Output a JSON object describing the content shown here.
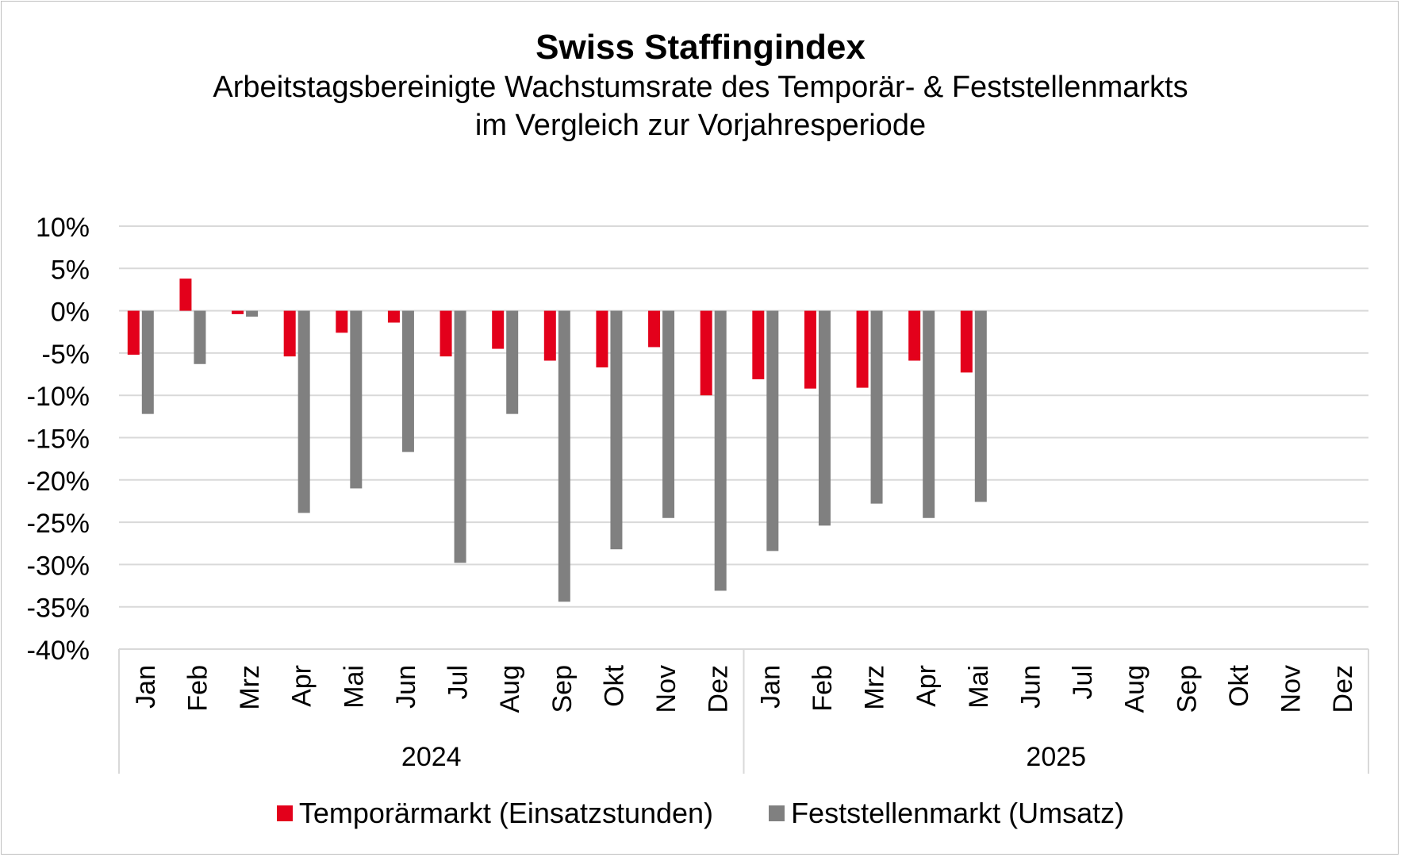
{
  "chart_data": {
    "type": "bar",
    "title": "Swiss Staffingindex",
    "subtitle_lines": [
      "Arbeitstagsbereinigte Wachstumsrate des Temporär- & Feststellenmarkts",
      "im Vergleich zur Vorjahresperiode"
    ],
    "ylim": [
      -40,
      10
    ],
    "yticks": [
      10,
      5,
      0,
      -5,
      -10,
      -15,
      -20,
      -25,
      -30,
      -35,
      -40
    ],
    "ytick_labels": [
      "10%",
      "5%",
      "0%",
      "-5%",
      "-10%",
      "-15%",
      "-20%",
      "-25%",
      "-30%",
      "-35%",
      "-40%"
    ],
    "grid": true,
    "legend_position": "bottom",
    "groups": [
      {
        "label": "2024",
        "categories": [
          "Jan",
          "Feb",
          "Mrz",
          "Apr",
          "Mai",
          "Jun",
          "Jul",
          "Aug",
          "Sep",
          "Okt",
          "Nov",
          "Dez"
        ]
      },
      {
        "label": "2025",
        "categories": [
          "Jan",
          "Feb",
          "Mrz",
          "Apr",
          "Mai",
          "Jun",
          "Jul",
          "Aug",
          "Sep",
          "Okt",
          "Nov",
          "Dez"
        ]
      }
    ],
    "series": [
      {
        "name": "Temporärmarkt (Einsatzstunden)",
        "color": "#e3001b",
        "values": [
          -5.2,
          3.8,
          -0.4,
          -5.4,
          -2.6,
          -1.4,
          -5.4,
          -4.5,
          -5.9,
          -6.7,
          -4.3,
          -10.0,
          -8.1,
          -9.2,
          -9.1,
          -5.9,
          -7.3,
          null,
          null,
          null,
          null,
          null,
          null,
          null
        ]
      },
      {
        "name": "Feststellenmarkt (Umsatz)",
        "color": "#808080",
        "values": [
          -12.2,
          -6.3,
          -0.7,
          -23.9,
          -21.0,
          -16.7,
          -29.8,
          -12.2,
          -34.4,
          -28.2,
          -24.5,
          -33.1,
          -28.4,
          -25.4,
          -22.8,
          -24.5,
          -22.6,
          null,
          null,
          null,
          null,
          null,
          null,
          null
        ]
      }
    ]
  }
}
